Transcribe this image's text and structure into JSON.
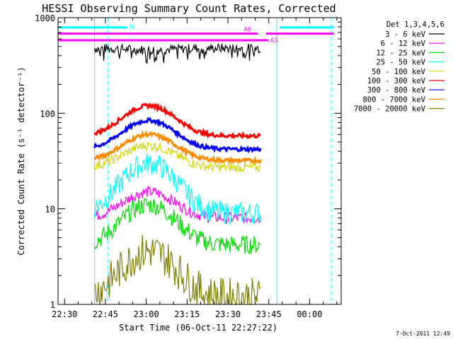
{
  "chart_data": {
    "type": "line",
    "title": "HESSI Observing Summary Count Rates, Corrected",
    "xlabel": "Start Time (06-Oct-11 22:27:22)",
    "ylabel": "Corrected Count Rate (s⁻¹ detector⁻¹)",
    "x_tick_labels": [
      "22:30",
      "22:45",
      "23:00",
      "23:15",
      "23:30",
      "23:45",
      "00:00"
    ],
    "x_tick_minutes": [
      0,
      15,
      30,
      45,
      60,
      75,
      90
    ],
    "xlim_minutes_from_22_30": [
      -2.4,
      101.6
    ],
    "y_scale": "log",
    "ylim": [
      1,
      1000
    ],
    "y_tick_labels": [
      "1",
      "10",
      "100",
      "1000"
    ],
    "y_tick_values": [
      1,
      10,
      100,
      1000
    ],
    "data_start": "22:41",
    "data_end": "23:42",
    "legend_title": "Det 1,3,4,5,6",
    "legend_placement": "right, outside plot",
    "series": [
      {
        "name": "3 - 6 keV",
        "color": "#000000",
        "base": 480,
        "peak": 460,
        "noise": 0.05
      },
      {
        "name": "6 - 12 keV",
        "color": "#ff00ff",
        "base": 8,
        "peak": 15,
        "noise": 0.06
      },
      {
        "name": "12 - 25 keV",
        "color": "#00dd00",
        "base": 4.2,
        "peak": 11,
        "noise": 0.1
      },
      {
        "name": "25 - 50 keV",
        "color": "#00ffff",
        "base": 9,
        "peak": 30,
        "noise": 0.12
      },
      {
        "name": "50 - 100 keV",
        "color": "#d4d400",
        "base": 27,
        "peak": 46,
        "noise": 0.05
      },
      {
        "name": "100 - 300 keV",
        "color": "#ff0000",
        "base": 58,
        "peak": 120,
        "noise": 0.02
      },
      {
        "name": "300 - 800 keV",
        "color": "#0000ff",
        "base": 42,
        "peak": 84,
        "noise": 0.02
      },
      {
        "name": "800 - 7000 keV",
        "color": "#ff8c00",
        "base": 32,
        "peak": 60,
        "noise": 0.02
      },
      {
        "name": "7000 - 20000 keV",
        "color": "#808000",
        "base": 1.2,
        "peak": 3.6,
        "noise": 0.2
      }
    ],
    "attenuator_bars": [
      {
        "label": "N",
        "color": "#00ffff",
        "segments": [
          [
            -2.4,
            23
          ],
          [
            79,
            99
          ]
        ],
        "y_value": 790
      },
      {
        "label": "A0",
        "color": "#ff00ff",
        "segments": [
          [
            -2.4,
            71
          ],
          [
            74,
            99
          ]
        ],
        "y_value": 680
      },
      {
        "label": "A3",
        "color": "#ff00ff",
        "segments": [
          [
            -2.4,
            75
          ]
        ],
        "y_value": 580
      }
    ],
    "vertical_markers": [
      {
        "color": "#00ffff",
        "style": "solid",
        "x_minutes": 11
      },
      {
        "color": "#00ffff",
        "style": "dashed",
        "x_minutes": 16
      },
      {
        "color": "#00ffff",
        "style": "solid",
        "x_minutes": 78
      },
      {
        "color": "#00ffff",
        "style": "dashed",
        "x_minutes": 98
      }
    ],
    "grid": false,
    "timestamp": "7-Oct-2011 12:49"
  }
}
